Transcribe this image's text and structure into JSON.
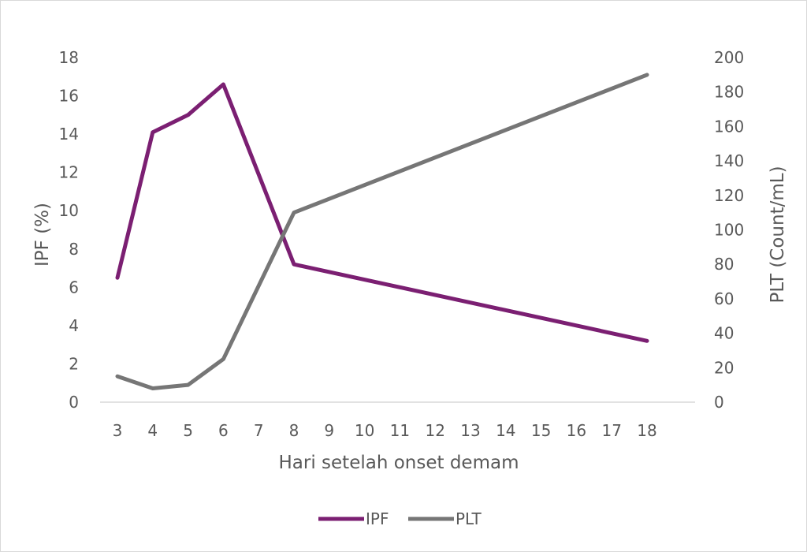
{
  "chart_data": {
    "type": "line",
    "categories": [
      "3",
      "4",
      "5",
      "6",
      "7",
      "8",
      "9",
      "10",
      "11",
      "12",
      "13",
      "14",
      "15",
      "16",
      "17",
      "18"
    ],
    "xlabel": "Hari setelah onset demam",
    "ylabel_left": "IPF (%)",
    "ylabel_right": "PLT (Count/mL)",
    "ylim_left": [
      0,
      18
    ],
    "ylim_right": [
      0,
      200
    ],
    "yticks_left": [
      "0",
      "2",
      "4",
      "6",
      "8",
      "10",
      "12",
      "14",
      "16",
      "18"
    ],
    "yticks_right": [
      "0",
      "20",
      "40",
      "60",
      "80",
      "100",
      "120",
      "140",
      "160",
      "180",
      "200"
    ],
    "grid": false,
    "legend_position": "bottom",
    "series": [
      {
        "name": "IPF",
        "axis": "left",
        "color": "#7B1F72",
        "points": [
          [
            3,
            6.5
          ],
          [
            4,
            14.1
          ],
          [
            5,
            15.0
          ],
          [
            6,
            16.6
          ],
          [
            8,
            7.2
          ],
          [
            18,
            3.2
          ]
        ]
      },
      {
        "name": "PLT",
        "axis": "right",
        "color": "#767676",
        "points": [
          [
            3,
            15
          ],
          [
            4,
            8
          ],
          [
            5,
            10
          ],
          [
            6,
            25
          ],
          [
            8,
            110
          ],
          [
            18,
            190
          ]
        ]
      }
    ]
  }
}
